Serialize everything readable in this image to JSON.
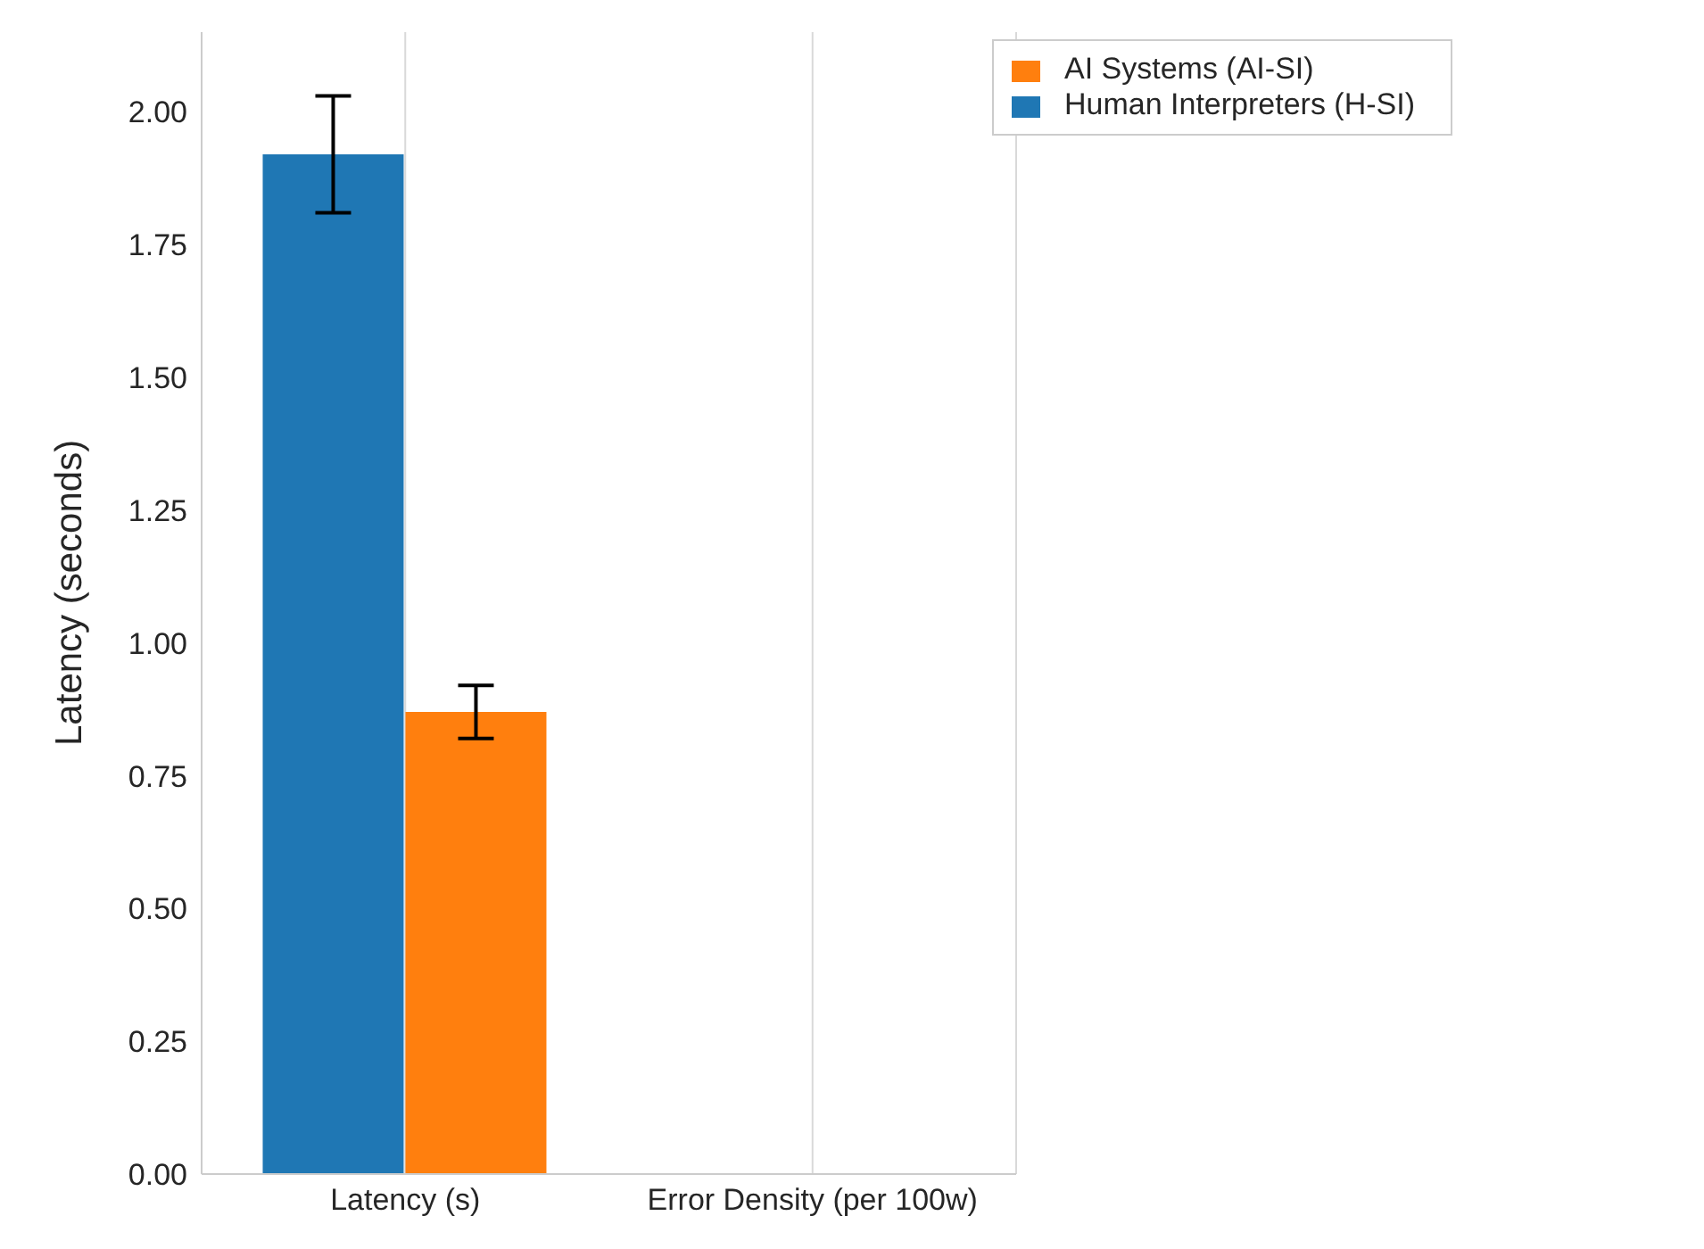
{
  "chart_data": {
    "type": "bar",
    "ylabel": "Latency (seconds)",
    "categories": [
      "Latency (s)",
      "Error Density (per 100w)"
    ],
    "series": [
      {
        "name": "Human Interpreters (H-SI)",
        "color": "#1f77b4",
        "values": [
          1.92,
          null
        ],
        "errors": [
          0.11,
          null
        ]
      },
      {
        "name": "AI Systems (AI-SI)",
        "color": "#ff7f0e",
        "values": [
          0.87,
          null
        ],
        "errors": [
          0.05,
          null
        ]
      }
    ],
    "ylim": [
      0,
      2.15
    ],
    "yticks": [
      {
        "value": 0,
        "label": "0.00"
      },
      {
        "value": 0.25,
        "label": "0.25"
      },
      {
        "value": 0.5,
        "label": "0.50"
      },
      {
        "value": 0.75,
        "label": "0.75"
      },
      {
        "value": 1,
        "label": "1.00"
      },
      {
        "value": 1.25,
        "label": "1.25"
      },
      {
        "value": 1.5,
        "label": "1.50"
      },
      {
        "value": 1.75,
        "label": "1.75"
      },
      {
        "value": 2,
        "label": "2.00"
      }
    ],
    "grid": "x",
    "legend": "top right"
  }
}
